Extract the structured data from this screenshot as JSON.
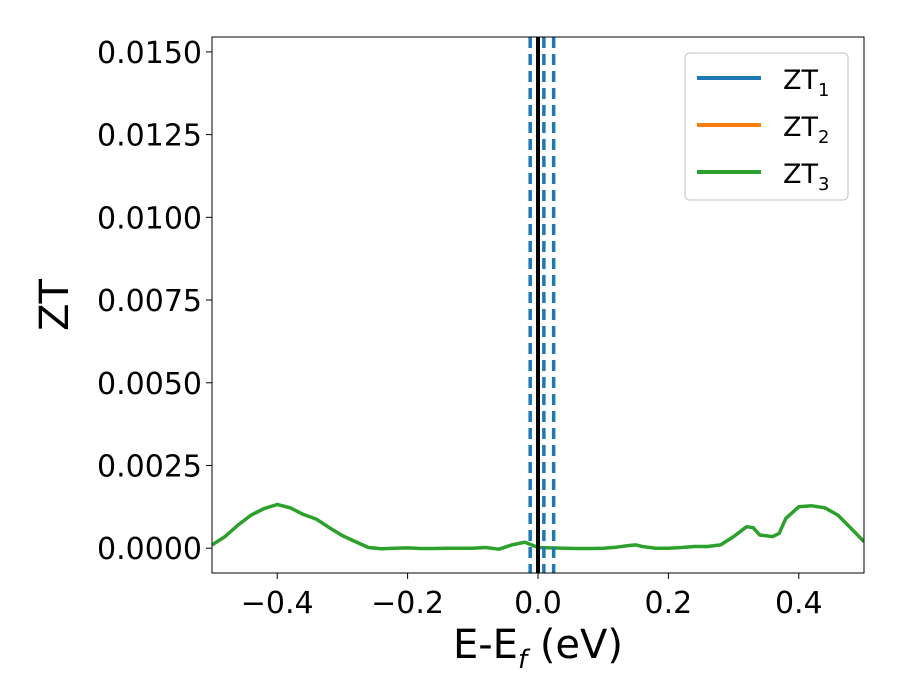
{
  "chart_data": {
    "type": "line",
    "xlabel": {
      "main": "E-E",
      "sub": "f",
      "suffix": " (eV)"
    },
    "ylabel": "ZT",
    "xlim": [
      -0.5,
      0.5
    ],
    "ylim": [
      -0.00075,
      0.01545
    ],
    "x_ticks": [
      -0.4,
      -0.2,
      0.0,
      0.2,
      0.4
    ],
    "x_tick_labels": [
      "−0.4",
      "−0.2",
      "0.0",
      "0.2",
      "0.4"
    ],
    "y_ticks": [
      0.0,
      0.0025,
      0.005,
      0.0075,
      0.01,
      0.0125,
      0.015
    ],
    "y_tick_labels": [
      "0.0000",
      "0.0025",
      "0.0050",
      "0.0075",
      "0.0100",
      "0.0125",
      "0.0150"
    ],
    "grid": false,
    "legend_position": "top-right",
    "series": [
      {
        "name": "ZT",
        "sub": "1",
        "color": "#1f77b4",
        "x": [],
        "y": []
      },
      {
        "name": "ZT",
        "sub": "2",
        "color": "#ff7f0e",
        "x": [],
        "y": []
      },
      {
        "name": "ZT",
        "sub": "3",
        "color": "#2ca02c",
        "x": [
          -0.5,
          -0.48,
          -0.46,
          -0.44,
          -0.42,
          -0.4,
          -0.38,
          -0.36,
          -0.34,
          -0.32,
          -0.3,
          -0.28,
          -0.26,
          -0.24,
          -0.22,
          -0.2,
          -0.18,
          -0.16,
          -0.14,
          -0.12,
          -0.1,
          -0.08,
          -0.06,
          -0.04,
          -0.02,
          0.0,
          0.02,
          0.04,
          0.06,
          0.08,
          0.1,
          0.12,
          0.14,
          0.15,
          0.16,
          0.18,
          0.2,
          0.22,
          0.24,
          0.26,
          0.28,
          0.3,
          0.32,
          0.33,
          0.34,
          0.36,
          0.37,
          0.38,
          0.4,
          0.42,
          0.44,
          0.46,
          0.48,
          0.5
        ],
        "y": [
          0.0001,
          0.00035,
          0.0007,
          0.001,
          0.0012,
          0.00132,
          0.00122,
          0.00102,
          0.00088,
          0.00062,
          0.00038,
          0.0002,
          2e-05,
          -2e-05,
          0.0,
          1e-05,
          -1e-05,
          -1e-05,
          0.0,
          0.0,
          0.0,
          2e-05,
          -3e-05,
          0.0001,
          0.00018,
          2e-05,
          1e-05,
          0.0,
          -1e-05,
          -1e-05,
          0.0,
          3e-05,
          8e-05,
          0.0001,
          5e-05,
          0.0,
          0.0,
          2e-05,
          5e-05,
          5e-05,
          0.0001,
          0.00035,
          0.00065,
          0.00062,
          0.0004,
          0.00035,
          0.00045,
          0.0009,
          0.00125,
          0.00128,
          0.00122,
          0.001,
          0.0006,
          0.0002
        ]
      }
    ],
    "vlines": [
      {
        "x": 0.0,
        "color": "#000000",
        "style": "solid"
      },
      {
        "x": -0.012,
        "color": "#1f77b4",
        "style": "dashed"
      },
      {
        "x": 0.009,
        "color": "#1f77b4",
        "style": "dashed"
      },
      {
        "x": 0.024,
        "color": "#1f77b4",
        "style": "dashed"
      }
    ]
  }
}
